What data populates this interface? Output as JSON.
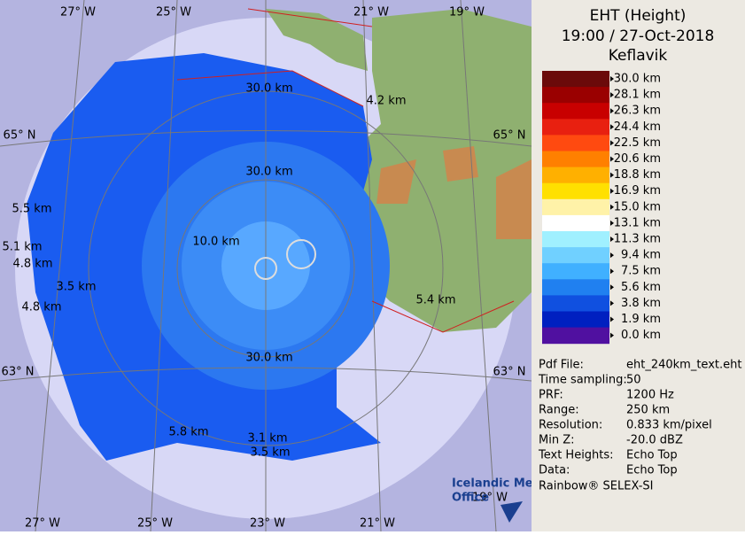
{
  "header": {
    "lines": [
      "EHT (Height)",
      "19:00 / 27-Oct-2018",
      "Keflavik"
    ]
  },
  "legend": [
    {
      "label": "30.0 km",
      "color": "#6b0a0a"
    },
    {
      "label": "28.1 km",
      "color": "#9a0000"
    },
    {
      "label": "26.3 km",
      "color": "#c80000"
    },
    {
      "label": "24.4 km",
      "color": "#e82010"
    },
    {
      "label": "22.5 km",
      "color": "#ff4a10"
    },
    {
      "label": "20.6 km",
      "color": "#ff8000"
    },
    {
      "label": "18.8 km",
      "color": "#ffb000"
    },
    {
      "label": "16.9 km",
      "color": "#ffe000"
    },
    {
      "label": "15.0 km",
      "color": "#fff2a8"
    },
    {
      "label": "13.1 km",
      "color": "#ffffff"
    },
    {
      "label": "11.3 km",
      "color": "#a0f0ff"
    },
    {
      "label": "9.4 km",
      "color": "#70d0ff"
    },
    {
      "label": "7.5 km",
      "color": "#40b0ff"
    },
    {
      "label": "5.6 km",
      "color": "#2080f0"
    },
    {
      "label": "3.8 km",
      "color": "#1050e0"
    },
    {
      "label": "1.9 km",
      "color": "#0020c0"
    },
    {
      "label": "0.0 km",
      "color": "#5010a0"
    }
  ],
  "info": [
    [
      "Pdf File:",
      "eht_240km_text.eht"
    ],
    [
      "Time sampling:",
      "50"
    ],
    [
      "PRF:",
      "1200 Hz"
    ],
    [
      "Range:",
      "250 km"
    ],
    [
      "Resolution:",
      "0.833 km/pixel"
    ],
    [
      "Min Z:",
      "-20.0 dBZ"
    ],
    [
      "Text Heights:",
      "Echo Top"
    ],
    [
      "Data:",
      "Echo Top"
    ]
  ],
  "footer": "Rainbow® SELEX-SI",
  "map": {
    "lon_top": [
      "27° W",
      "25° W",
      "21° W",
      "19° W"
    ],
    "lon_bottom": [
      "27° W",
      "25° W",
      "23° W",
      "21° W",
      "19° W"
    ],
    "lat": [
      "65° N",
      "65° N",
      "63° N",
      "63° N"
    ],
    "rings": [
      "30.0 km",
      "30.0 km",
      "30.0 km"
    ],
    "heights": [
      "4.2 km",
      "5.5 km",
      "5.1 km",
      "4.8 km",
      "10.0 km",
      "3.5 km",
      "4.8 km",
      "5.4 km",
      "5.8 km",
      "3.1 km",
      "3.5 km"
    ]
  },
  "logo": [
    "Icelandic Met",
    "Office"
  ]
}
